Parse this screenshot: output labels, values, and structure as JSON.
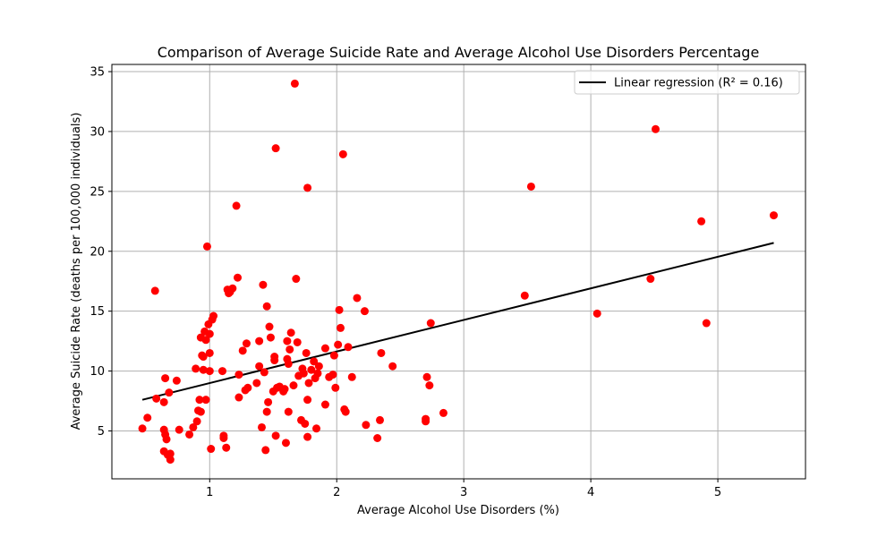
{
  "chart_data": {
    "type": "scatter",
    "title": "Comparison of Average Suicide Rate and Average Alcohol Use Disorders Percentage",
    "xlabel": "Average Alcohol Use Disorders (%)",
    "ylabel": "Average Suicide Rate (deaths per 100,000 individuals)",
    "xlim": [
      0.23,
      5.69
    ],
    "ylim": [
      1.0,
      35.6
    ],
    "xticks": [
      1,
      2,
      3,
      4,
      5
    ],
    "yticks": [
      5,
      10,
      15,
      20,
      25,
      30,
      35
    ],
    "grid": true,
    "legend_position": "top-right",
    "point_color": "#ff0000",
    "line_color": "#000000",
    "points": [
      [
        0.47,
        5.2
      ],
      [
        0.51,
        6.1
      ],
      [
        0.57,
        16.7
      ],
      [
        0.58,
        7.7
      ],
      [
        0.64,
        7.4
      ],
      [
        0.64,
        5.1
      ],
      [
        0.65,
        9.4
      ],
      [
        0.65,
        4.7
      ],
      [
        0.66,
        4.3
      ],
      [
        0.64,
        3.3
      ],
      [
        0.67,
        3.0
      ],
      [
        0.68,
        8.2
      ],
      [
        0.69,
        3.1
      ],
      [
        0.69,
        2.6
      ],
      [
        0.74,
        9.2
      ],
      [
        0.76,
        5.1
      ],
      [
        0.84,
        4.7
      ],
      [
        0.87,
        5.3
      ],
      [
        0.89,
        10.2
      ],
      [
        0.9,
        5.8
      ],
      [
        0.91,
        6.7
      ],
      [
        0.92,
        7.6
      ],
      [
        0.93,
        12.8
      ],
      [
        0.93,
        6.6
      ],
      [
        0.94,
        11.3
      ],
      [
        0.95,
        10.1
      ],
      [
        0.95,
        11.2
      ],
      [
        0.96,
        13.3
      ],
      [
        0.97,
        12.6
      ],
      [
        0.97,
        7.6
      ],
      [
        0.98,
        20.4
      ],
      [
        0.99,
        13.9
      ],
      [
        1.0,
        13.1
      ],
      [
        1.0,
        11.5
      ],
      [
        1.0,
        10.0
      ],
      [
        1.01,
        3.5
      ],
      [
        1.02,
        14.3
      ],
      [
        1.03,
        14.6
      ],
      [
        1.1,
        10.0
      ],
      [
        1.11,
        4.6
      ],
      [
        1.11,
        4.4
      ],
      [
        1.13,
        3.6
      ],
      [
        1.14,
        16.8
      ],
      [
        1.15,
        16.5
      ],
      [
        1.16,
        16.6
      ],
      [
        1.18,
        16.9
      ],
      [
        1.21,
        23.8
      ],
      [
        1.22,
        17.8
      ],
      [
        1.23,
        9.7
      ],
      [
        1.23,
        7.8
      ],
      [
        1.26,
        11.7
      ],
      [
        1.28,
        8.4
      ],
      [
        1.29,
        12.3
      ],
      [
        1.3,
        8.6
      ],
      [
        1.37,
        9.0
      ],
      [
        1.39,
        12.5
      ],
      [
        1.39,
        10.4
      ],
      [
        1.41,
        5.3
      ],
      [
        1.42,
        17.2
      ],
      [
        1.43,
        9.9
      ],
      [
        1.44,
        3.4
      ],
      [
        1.45,
        15.4
      ],
      [
        1.45,
        6.6
      ],
      [
        1.46,
        7.4
      ],
      [
        1.47,
        13.7
      ],
      [
        1.48,
        12.8
      ],
      [
        1.5,
        8.3
      ],
      [
        1.51,
        10.9
      ],
      [
        1.51,
        11.2
      ],
      [
        1.52,
        28.6
      ],
      [
        1.52,
        4.6
      ],
      [
        1.53,
        8.6
      ],
      [
        1.55,
        8.7
      ],
      [
        1.58,
        8.3
      ],
      [
        1.59,
        8.5
      ],
      [
        1.6,
        4.0
      ],
      [
        1.61,
        12.5
      ],
      [
        1.61,
        11.0
      ],
      [
        1.62,
        6.6
      ],
      [
        1.62,
        10.6
      ],
      [
        1.63,
        11.8
      ],
      [
        1.64,
        13.2
      ],
      [
        1.66,
        8.8
      ],
      [
        1.67,
        34.0
      ],
      [
        1.68,
        17.7
      ],
      [
        1.69,
        12.4
      ],
      [
        1.7,
        9.6
      ],
      [
        1.72,
        5.9
      ],
      [
        1.73,
        10.2
      ],
      [
        1.74,
        9.8
      ],
      [
        1.75,
        5.6
      ],
      [
        1.76,
        11.5
      ],
      [
        1.77,
        25.3
      ],
      [
        1.77,
        7.6
      ],
      [
        1.77,
        4.5
      ],
      [
        1.78,
        9.0
      ],
      [
        1.8,
        10.1
      ],
      [
        1.82,
        10.8
      ],
      [
        1.83,
        9.4
      ],
      [
        1.84,
        5.2
      ],
      [
        1.85,
        9.8
      ],
      [
        1.86,
        10.4
      ],
      [
        1.91,
        11.9
      ],
      [
        1.91,
        7.2
      ],
      [
        1.94,
        9.5
      ],
      [
        1.97,
        9.7
      ],
      [
        1.98,
        11.3
      ],
      [
        1.99,
        8.6
      ],
      [
        2.01,
        12.2
      ],
      [
        2.02,
        15.1
      ],
      [
        2.03,
        13.6
      ],
      [
        2.05,
        28.1
      ],
      [
        2.06,
        6.8
      ],
      [
        2.07,
        6.6
      ],
      [
        2.09,
        12.0
      ],
      [
        2.12,
        9.5
      ],
      [
        2.16,
        16.1
      ],
      [
        2.22,
        15.0
      ],
      [
        2.23,
        5.5
      ],
      [
        2.32,
        4.4
      ],
      [
        2.34,
        5.9
      ],
      [
        2.35,
        11.5
      ],
      [
        2.44,
        10.4
      ],
      [
        2.7,
        5.8
      ],
      [
        2.7,
        6.0
      ],
      [
        2.71,
        9.5
      ],
      [
        2.73,
        8.8
      ],
      [
        2.74,
        14.0
      ],
      [
        2.84,
        6.5
      ],
      [
        3.48,
        16.3
      ],
      [
        3.53,
        25.4
      ],
      [
        4.05,
        14.8
      ],
      [
        4.47,
        17.7
      ],
      [
        4.51,
        30.2
      ],
      [
        4.87,
        22.5
      ],
      [
        4.91,
        14.0
      ],
      [
        5.44,
        23.0
      ]
    ],
    "regression": {
      "label": "Linear regression (R² = 0.16)",
      "x": [
        0.47,
        5.44
      ],
      "y": [
        7.6,
        20.7
      ]
    }
  }
}
